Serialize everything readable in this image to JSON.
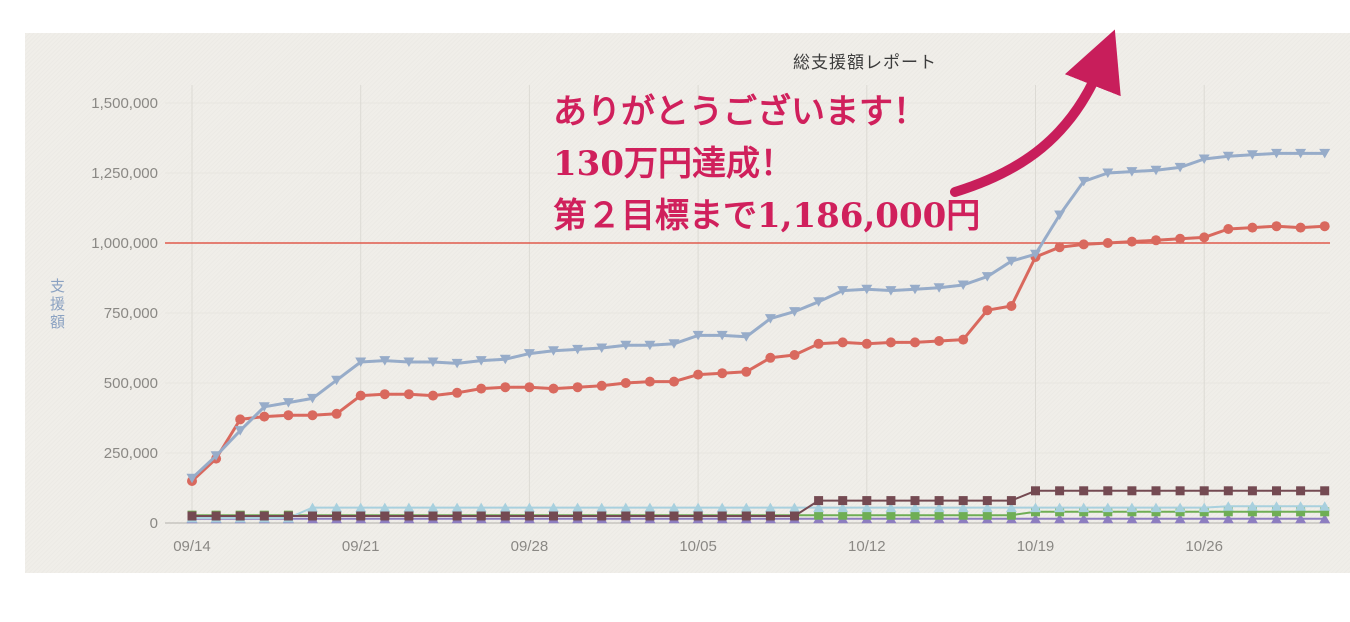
{
  "panel": {
    "title": "総支援額レポート",
    "y_axis_label": "支援額"
  },
  "annotation": {
    "color": "#d0205c",
    "line1": "ありがとうございます！",
    "line2": "130万円達成！",
    "line3": "第２目標まで1,186,000円"
  },
  "chart_data": {
    "type": "line",
    "title": "総支援額レポート",
    "ylabel": "支援額",
    "xlabel": "",
    "ylim": [
      0,
      1500000
    ],
    "grid": true,
    "legend_position": "none",
    "y_ticks": [
      0,
      250000,
      500000,
      750000,
      1000000,
      1250000,
      1500000
    ],
    "y_tick_labels": [
      "0",
      "250,000",
      "500,000",
      "750,000",
      "1,000,000",
      "1,250,000",
      "1,500,000"
    ],
    "x_tick_labels": [
      "09/14",
      "09/21",
      "09/28",
      "10/05",
      "10/12",
      "10/19",
      "10/26"
    ],
    "x_tick_positions": [
      0,
      7,
      14,
      21,
      28,
      35,
      42
    ],
    "x": [
      "09/14",
      "09/15",
      "09/16",
      "09/17",
      "09/18",
      "09/19",
      "09/20",
      "09/21",
      "09/22",
      "09/23",
      "09/24",
      "09/25",
      "09/26",
      "09/27",
      "09/28",
      "09/29",
      "09/30",
      "10/01",
      "10/02",
      "10/03",
      "10/04",
      "10/05",
      "10/06",
      "10/07",
      "10/08",
      "10/09",
      "10/10",
      "10/11",
      "10/12",
      "10/13",
      "10/14",
      "10/15",
      "10/16",
      "10/17",
      "10/18",
      "10/19",
      "10/20",
      "10/21",
      "10/22",
      "10/23",
      "10/24",
      "10/25",
      "10/26",
      "10/27",
      "10/28",
      "10/29",
      "10/30",
      "10/31"
    ],
    "goal_line": {
      "value": 1000000,
      "color": "#e05a4c"
    },
    "series": [
      {
        "name": "series-purple-triangles",
        "color": "#8d7ec0",
        "marker": "triangle-up",
        "line_width": 2,
        "values": [
          15000,
          15000,
          15000,
          15000,
          15000,
          15000,
          15000,
          15000,
          15000,
          15000,
          15000,
          15000,
          15000,
          15000,
          15000,
          15000,
          15000,
          15000,
          15000,
          15000,
          15000,
          15000,
          15000,
          15000,
          15000,
          15000,
          15000,
          15000,
          15000,
          15000,
          15000,
          15000,
          15000,
          15000,
          15000,
          15000,
          15000,
          15000,
          15000,
          15000,
          15000,
          15000,
          15000,
          15000,
          15000,
          15000,
          15000,
          15000
        ]
      },
      {
        "name": "series-green-squares",
        "color": "#6fae55",
        "marker": "square",
        "line_width": 2,
        "values": [
          28000,
          28000,
          28000,
          28000,
          28000,
          28000,
          28000,
          28000,
          28000,
          28000,
          28000,
          28000,
          28000,
          28000,
          28000,
          28000,
          28000,
          28000,
          28000,
          28000,
          28000,
          28000,
          28000,
          28000,
          28000,
          28000,
          28000,
          28000,
          28000,
          28000,
          28000,
          28000,
          28000,
          28000,
          28000,
          40000,
          40000,
          40000,
          40000,
          40000,
          40000,
          40000,
          40000,
          40000,
          40000,
          40000,
          40000,
          40000
        ]
      },
      {
        "name": "series-cyan-triangles",
        "color": "#a8d0de",
        "marker": "triangle-up",
        "line_width": 2,
        "values": [
          18000,
          18000,
          18000,
          18000,
          18000,
          55000,
          55000,
          55000,
          55000,
          55000,
          55000,
          55000,
          55000,
          55000,
          55000,
          55000,
          55000,
          55000,
          55000,
          55000,
          55000,
          55000,
          55000,
          55000,
          55000,
          55000,
          55000,
          55000,
          55000,
          55000,
          55000,
          55000,
          55000,
          55000,
          55000,
          55000,
          55000,
          55000,
          55000,
          55000,
          55000,
          55000,
          55000,
          60000,
          60000,
          60000,
          60000,
          60000
        ]
      },
      {
        "name": "series-maroon-squares",
        "color": "#744a52",
        "marker": "square",
        "line_width": 2,
        "values": [
          25000,
          25000,
          25000,
          25000,
          25000,
          25000,
          25000,
          25000,
          25000,
          25000,
          25000,
          25000,
          25000,
          25000,
          25000,
          25000,
          25000,
          25000,
          25000,
          25000,
          25000,
          25000,
          25000,
          25000,
          25000,
          25000,
          80000,
          80000,
          80000,
          80000,
          80000,
          80000,
          80000,
          80000,
          80000,
          115000,
          115000,
          115000,
          115000,
          115000,
          115000,
          115000,
          115000,
          115000,
          115000,
          115000,
          115000,
          115000
        ]
      },
      {
        "name": "series-red-circles",
        "color": "#d9695e",
        "marker": "circle",
        "line_width": 3,
        "values": [
          150000,
          230000,
          370000,
          380000,
          385000,
          385000,
          390000,
          455000,
          460000,
          460000,
          455000,
          465000,
          480000,
          485000,
          485000,
          480000,
          485000,
          490000,
          500000,
          505000,
          505000,
          530000,
          535000,
          540000,
          590000,
          600000,
          640000,
          645000,
          640000,
          645000,
          645000,
          650000,
          655000,
          760000,
          775000,
          950000,
          985000,
          995000,
          1000000,
          1005000,
          1010000,
          1015000,
          1020000,
          1050000,
          1055000,
          1060000,
          1055000,
          1060000
        ]
      },
      {
        "name": "series-blue-triangles",
        "color": "#97acc9",
        "marker": "triangle-down",
        "line_width": 3,
        "values": [
          160000,
          240000,
          330000,
          415000,
          430000,
          445000,
          510000,
          575000,
          580000,
          575000,
          575000,
          570000,
          580000,
          585000,
          605000,
          615000,
          620000,
          625000,
          635000,
          635000,
          640000,
          670000,
          670000,
          665000,
          730000,
          755000,
          790000,
          830000,
          835000,
          830000,
          835000,
          840000,
          850000,
          880000,
          935000,
          960000,
          1100000,
          1220000,
          1250000,
          1255000,
          1260000,
          1270000,
          1300000,
          1310000,
          1315000,
          1320000,
          1320000,
          1320000
        ]
      }
    ],
    "annotation_arrow_color": "#c81e5b",
    "axis_text_color": "#8a8884"
  }
}
